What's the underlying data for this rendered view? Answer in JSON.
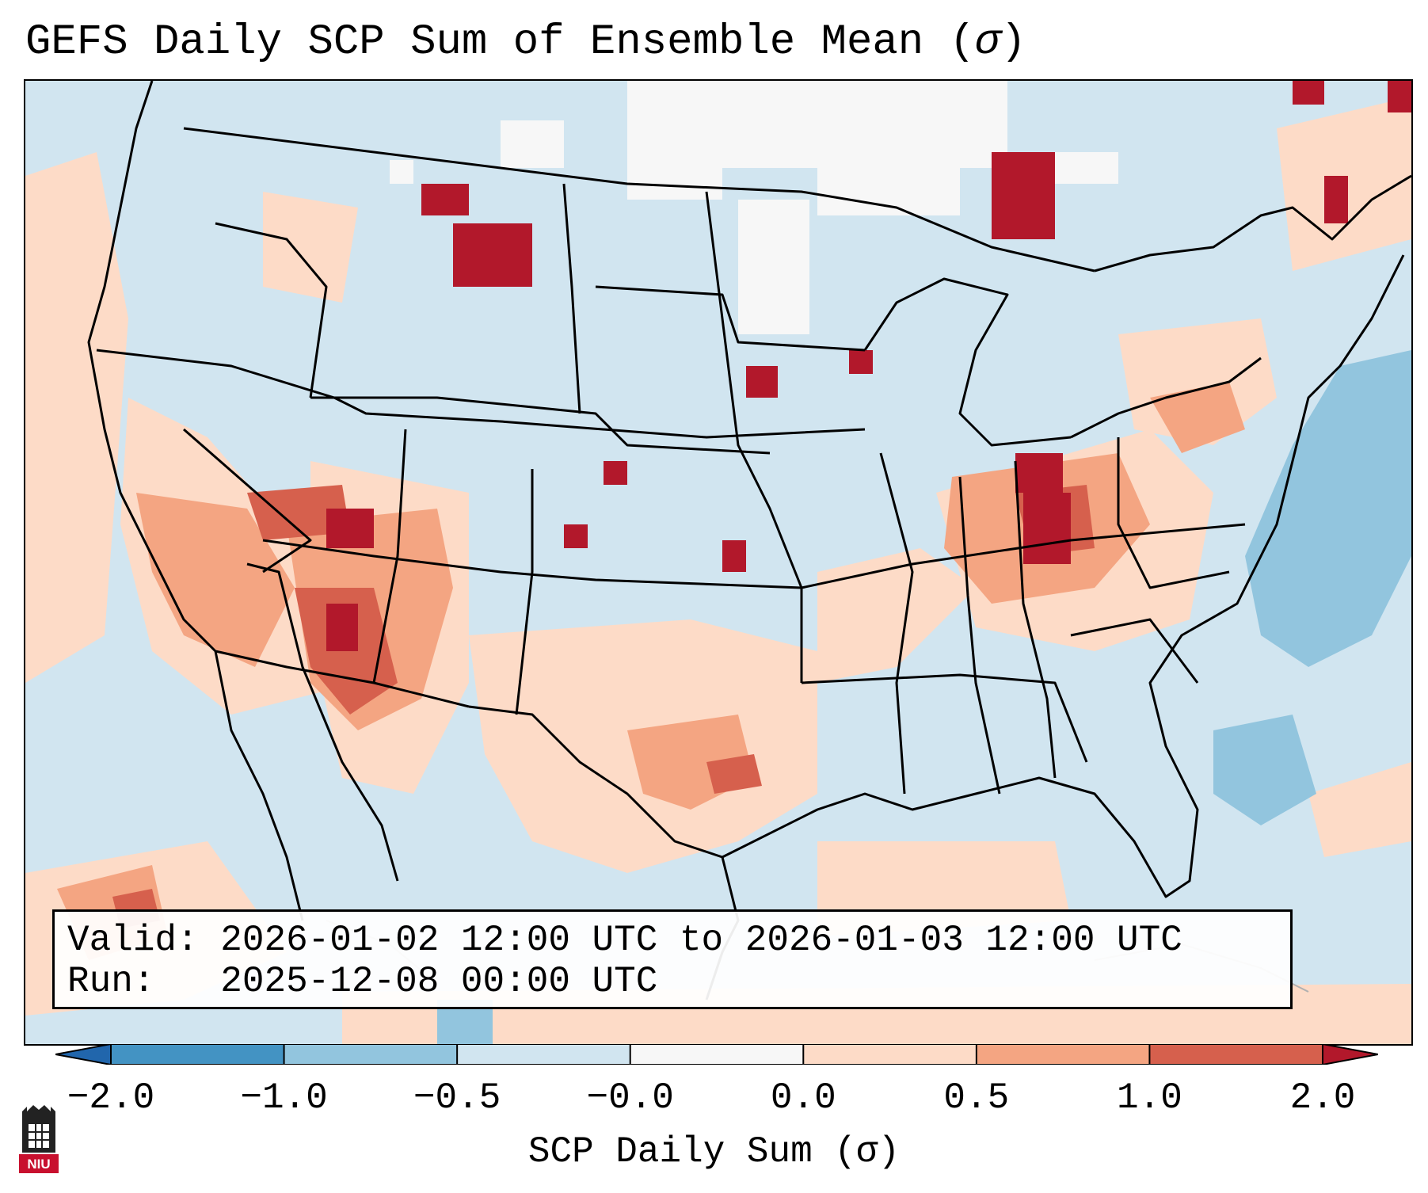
{
  "title": {
    "prefix": "GEFS Daily SCP Sum of Ensemble Mean (",
    "sigma": "σ",
    "suffix": ")"
  },
  "info": {
    "valid_label": "Valid:",
    "valid_value": "2026-01-02 12:00 UTC to 2026-01-03 12:00 UTC",
    "run_label": "Run:",
    "run_value": "2025-12-08 00:00 UTC"
  },
  "colorbar": {
    "label": "SCP Daily Sum (σ)",
    "ticks": [
      "−2.0",
      "−1.0",
      "−0.5",
      "−0.0",
      "0.0",
      "0.5",
      "1.0",
      "2.0"
    ],
    "bins": [
      {
        "from": "−2.0",
        "to": "−1.0",
        "color": "#4393c3"
      },
      {
        "from": "−1.0",
        "to": "−0.5",
        "color": "#92c5de"
      },
      {
        "from": "−0.5",
        "to": "−0.0",
        "color": "#d1e5f0"
      },
      {
        "from": "−0.0",
        "to": "0.0",
        "color": "#f7f7f7"
      },
      {
        "from": "0.0",
        "to": "0.5",
        "color": "#fddbc7"
      },
      {
        "from": "0.5",
        "to": "1.0",
        "color": "#f4a582"
      },
      {
        "from": "1.0",
        "to": "2.0",
        "color": "#d6604d"
      }
    ],
    "under_color": "#2166ac",
    "over_color": "#b2182b"
  },
  "logo": {
    "text": "NIU",
    "icon": "niu-castle-logo-icon"
  }
}
